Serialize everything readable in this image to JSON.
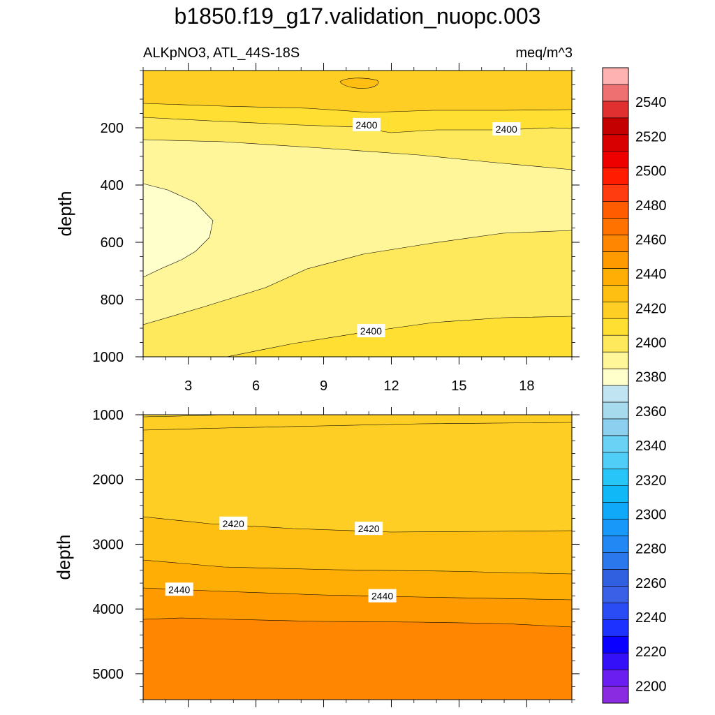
{
  "chart_data": {
    "type": "contour",
    "title": "b1850.f19_g17.validation_nuopc.003",
    "left_subtitle": "ALKpNO3, ATL_44S-18S",
    "right_subtitle": "meq/m^3",
    "panels": [
      {
        "name": "upper",
        "ylabel": "depth",
        "xlim": [
          1,
          20
        ],
        "ylim": [
          0,
          1000
        ],
        "yticks": [
          200,
          400,
          600,
          800,
          1000
        ],
        "xticks": [
          3,
          6,
          9,
          12,
          15,
          18
        ],
        "xticklabels": [
          "3",
          "6",
          "9",
          "12",
          "15",
          "18"
        ],
        "contour_labels": [
          {
            "text": "2400",
            "x": 10.9,
            "y": 190
          },
          {
            "text": "2400",
            "x": 17.1,
            "y": 205
          },
          {
            "text": "2400",
            "x": 11.1,
            "y": 910
          }
        ]
      },
      {
        "name": "lower",
        "ylabel": "depth",
        "xlim": [
          1,
          20
        ],
        "ylim": [
          1000,
          5400
        ],
        "yticks": [
          1000,
          2000,
          3000,
          4000,
          5000
        ],
        "contour_labels": [
          {
            "text": "2420",
            "x": 5.0,
            "y": 2680
          },
          {
            "text": "2420",
            "x": 11.0,
            "y": 2760
          },
          {
            "text": "2440",
            "x": 2.6,
            "y": 3700
          },
          {
            "text": "2440",
            "x": 11.6,
            "y": 3800
          }
        ]
      }
    ],
    "colorbar": {
      "levels": [
        2190,
        2200,
        2210,
        2220,
        2230,
        2240,
        2250,
        2260,
        2270,
        2280,
        2290,
        2300,
        2310,
        2320,
        2330,
        2340,
        2350,
        2360,
        2370,
        2380,
        2390,
        2400,
        2410,
        2420,
        2430,
        2440,
        2450,
        2460,
        2470,
        2480,
        2490,
        2500,
        2510,
        2520,
        2530,
        2540,
        2550,
        2560
      ],
      "colors": [
        "#8a2be2",
        "#6a1ef0",
        "#3410f8",
        "#0a00ff",
        "#1e32ff",
        "#2a4cf4",
        "#3a60e8",
        "#3060e0",
        "#2a78ec",
        "#2288f4",
        "#1898f8",
        "#10a8f8",
        "#10b8f8",
        "#28c6f8",
        "#50cef8",
        "#6ad2f4",
        "#8ccfee",
        "#a8daee",
        "#c0e4f2",
        "#ffffcc",
        "#fff69a",
        "#fee85c",
        "#ffdf32",
        "#ffce24",
        "#ffbe12",
        "#ffae06",
        "#ff9a00",
        "#ff8600",
        "#ff7200",
        "#ff5c00",
        "#ff3c10",
        "#ff1c00",
        "#ee0000",
        "#d80000",
        "#c40000",
        "#e03030",
        "#ee7070",
        "#ffb2b2"
      ],
      "ticks": [
        2200,
        2220,
        2240,
        2260,
        2280,
        2300,
        2320,
        2340,
        2360,
        2380,
        2400,
        2420,
        2440,
        2460,
        2480,
        2500,
        2520,
        2540
      ]
    }
  }
}
